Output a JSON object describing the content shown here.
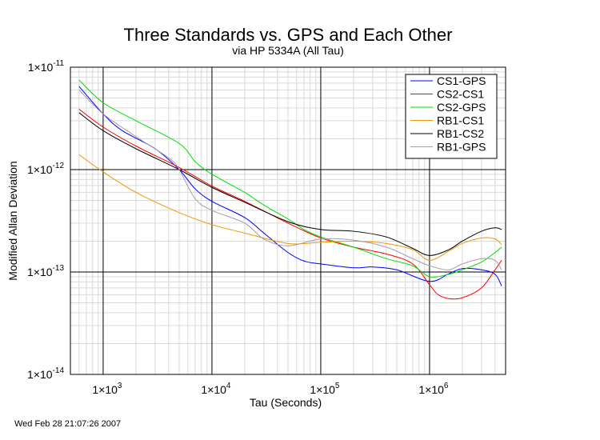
{
  "chart_data": {
    "type": "line",
    "title": "Three Standards vs. GPS and Each Other",
    "subtitle": "via HP 5334A (All Tau)",
    "xlabel": "Tau (Seconds)",
    "ylabel": "Modified Allan Deviation",
    "x_scale": "log",
    "y_scale": "log",
    "xlim": [
      500,
      5000000
    ],
    "ylim": [
      1e-14,
      1e-11
    ],
    "x_major_ticks": [
      1000,
      10000,
      100000,
      1000000
    ],
    "y_major_ticks": [
      1e-14,
      1e-13,
      1e-12,
      1e-11
    ],
    "grid": true,
    "legend_position": "top-right",
    "timestamp": "Wed Feb 28 21:07:26 2007",
    "series": [
      {
        "name": "CS1-GPS",
        "color": "#0000ff",
        "x": [
          600,
          1000,
          1500,
          3000,
          5000,
          7000,
          10000,
          20000,
          30000,
          50000,
          70000,
          100000,
          200000,
          300000,
          500000,
          1000000,
          1500000,
          2000000,
          3000000,
          4000000,
          4600000
        ],
        "y": [
          6.5e-12,
          3.5e-12,
          2.4e-12,
          1.6e-12,
          1e-12,
          6.5e-13,
          4.9e-13,
          3.4e-13,
          2.4e-13,
          1.55e-13,
          1.28e-13,
          1.2e-13,
          1.1e-13,
          1.12e-13,
          1.05e-13,
          8.1e-14,
          9.6e-14,
          1.08e-13,
          1.05e-13,
          9.5e-14,
          7.3e-14
        ]
      },
      {
        "name": "CS2-CS1",
        "color": "#ff0000",
        "x": [
          600,
          1000,
          2000,
          5000,
          10000,
          20000,
          50000,
          100000,
          200000,
          400000,
          700000,
          1000000,
          1200000,
          1500000,
          2000000,
          3000000,
          4000000,
          4600000
        ],
        "y": [
          3.9e-12,
          2.6e-12,
          1.7e-12,
          1.05e-12,
          6.9e-13,
          4.9e-13,
          3e-13,
          2.15e-13,
          1.75e-13,
          1.5e-13,
          1.2e-13,
          7.5e-14,
          6e-14,
          5.5e-14,
          5.6e-14,
          7e-14,
          1.05e-13,
          1.3e-13
        ]
      },
      {
        "name": "CS2-GPS",
        "color": "#00dd00",
        "x": [
          600,
          1000,
          2000,
          5000,
          7000,
          10000,
          20000,
          30000,
          50000,
          70000,
          100000,
          200000,
          400000,
          700000,
          1000000,
          1500000,
          2000000,
          3000000,
          4000000,
          4600000
        ],
        "y": [
          7.5e-12,
          4.5e-12,
          3e-12,
          1.8e-12,
          1.2e-12,
          9e-13,
          6e-13,
          4.5e-13,
          3.3e-13,
          2.6e-13,
          2.2e-13,
          1.75e-13,
          1.35e-13,
          1.15e-13,
          9e-14,
          9.5e-14,
          1.05e-13,
          1.25e-13,
          1.55e-13,
          1.75e-13
        ]
      },
      {
        "name": "RB1-CS1",
        "color": "#ee9900",
        "x": [
          600,
          1000,
          2000,
          5000,
          10000,
          20000,
          50000,
          100000,
          200000,
          400000,
          700000,
          1000000,
          1500000,
          2000000,
          3000000,
          4000000,
          4600000
        ],
        "y": [
          1.4e-12,
          9.5e-13,
          6e-13,
          3.8e-13,
          2.9e-13,
          2.4e-13,
          1.9e-13,
          1.95e-13,
          2e-13,
          1.9e-13,
          1.65e-13,
          1.3e-13,
          1.6e-13,
          1.9e-13,
          2.15e-13,
          2.1e-13,
          1.85e-13
        ]
      },
      {
        "name": "RB1-CS2",
        "color": "#000000",
        "x": [
          600,
          1000,
          2000,
          5000,
          10000,
          20000,
          50000,
          100000,
          200000,
          400000,
          700000,
          1000000,
          1500000,
          2000000,
          3000000,
          4000000,
          4600000
        ],
        "y": [
          3.6e-12,
          2.4e-12,
          1.6e-12,
          1e-12,
          6.7e-13,
          4.8e-13,
          3.1e-13,
          2.6e-13,
          2.5e-13,
          2.2e-13,
          1.7e-13,
          1.45e-13,
          1.65e-13,
          2e-13,
          2.5e-13,
          2.7e-13,
          2.6e-13
        ]
      },
      {
        "name": "RB1-GPS",
        "color": "#aa99aa",
        "x": [
          600,
          1000,
          2000,
          4000,
          5000,
          7000,
          10000,
          20000,
          30000,
          50000,
          100000,
          200000,
          400000,
          700000,
          1000000,
          1500000,
          2000000,
          3000000,
          4000000,
          4600000
        ],
        "y": [
          6e-12,
          3.5e-12,
          2.1e-12,
          1.3e-12,
          1e-12,
          5.2e-13,
          4e-13,
          3e-13,
          2.1e-13,
          1.8e-13,
          2.1e-13,
          2.05e-13,
          1.75e-13,
          1.35e-13,
          1.15e-13,
          1.05e-13,
          1.2e-13,
          1.35e-13,
          1.3e-13,
          1.05e-13
        ]
      }
    ]
  }
}
